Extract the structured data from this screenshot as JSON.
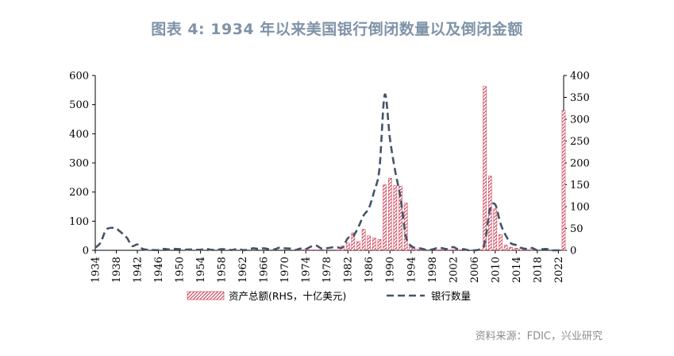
{
  "title": "图表 4:   1934 年以来美国银行倒闭数量以及倒闭金额",
  "source": "资料来源：FDIC，兴业研究",
  "colors": {
    "bars": "#c8334a",
    "line": "#44546a",
    "title": "#7f93a8"
  },
  "chart_data": {
    "type": "bar+line",
    "xlim": [
      1934,
      2023
    ],
    "x_ticks": [
      "1934",
      "1938",
      "1942",
      "1946",
      "1950",
      "1954",
      "1958",
      "1962",
      "1966",
      "1970",
      "1974",
      "1978",
      "1982",
      "1986",
      "1990",
      "1994",
      "1998",
      "2002",
      "2006",
      "2010",
      "2014",
      "2018",
      "2022"
    ],
    "y_left": {
      "range": [
        0,
        600
      ],
      "ticks": [
        "0",
        "100",
        "200",
        "300",
        "400",
        "500",
        "600"
      ]
    },
    "y_right": {
      "range": [
        0,
        400
      ],
      "ticks": [
        "0",
        "50",
        "100",
        "150",
        "200",
        "250",
        "300",
        "350",
        "400"
      ]
    },
    "legend": {
      "bars_label": "资产总额(RHS，十亿美元)",
      "line_label": "银行数量"
    },
    "bank_count": {
      "axis": "left",
      "x": [
        1934,
        1935,
        1936,
        1937,
        1938,
        1939,
        1940,
        1941,
        1942,
        1943,
        1944,
        1945,
        1946,
        1947,
        1948,
        1949,
        1950,
        1951,
        1952,
        1953,
        1954,
        1955,
        1956,
        1957,
        1958,
        1959,
        1960,
        1961,
        1962,
        1963,
        1964,
        1965,
        1966,
        1967,
        1968,
        1969,
        1970,
        1971,
        1972,
        1973,
        1974,
        1975,
        1976,
        1977,
        1978,
        1979,
        1980,
        1981,
        1982,
        1983,
        1984,
        1985,
        1986,
        1987,
        1988,
        1989,
        1990,
        1991,
        1992,
        1993,
        1994,
        1995,
        1996,
        1997,
        1998,
        1999,
        2000,
        2001,
        2002,
        2003,
        2004,
        2005,
        2006,
        2007,
        2008,
        2009,
        2010,
        2011,
        2012,
        2013,
        2014,
        2015,
        2016,
        2017,
        2018,
        2019,
        2020,
        2021,
        2022,
        2023
      ],
      "values": [
        9,
        26,
        69,
        77,
        74,
        60,
        43,
        15,
        20,
        5,
        2,
        1,
        1,
        5,
        3,
        5,
        4,
        2,
        3,
        2,
        2,
        5,
        2,
        1,
        4,
        3,
        1,
        5,
        1,
        2,
        7,
        5,
        7,
        4,
        3,
        9,
        7,
        6,
        1,
        6,
        4,
        13,
        16,
        6,
        7,
        10,
        10,
        10,
        42,
        48,
        80,
        120,
        145,
        203,
        280,
        534,
        382,
        271,
        181,
        50,
        15,
        8,
        6,
        1,
        3,
        8,
        7,
        4,
        11,
        3,
        4,
        0,
        0,
        3,
        25,
        140,
        157,
        92,
        51,
        24,
        18,
        8,
        5,
        8,
        0,
        4,
        4,
        0,
        0,
        5
      ]
    },
    "total_assets": {
      "axis": "right",
      "x": [
        1934,
        1935,
        1936,
        1937,
        1938,
        1939,
        1940,
        1941,
        1942,
        1943,
        1944,
        1945,
        1946,
        1947,
        1948,
        1949,
        1950,
        1951,
        1952,
        1953,
        1954,
        1955,
        1956,
        1957,
        1958,
        1959,
        1960,
        1961,
        1962,
        1963,
        1964,
        1965,
        1966,
        1967,
        1968,
        1969,
        1970,
        1971,
        1972,
        1973,
        1974,
        1975,
        1976,
        1977,
        1978,
        1979,
        1980,
        1981,
        1982,
        1983,
        1984,
        1985,
        1986,
        1987,
        1988,
        1989,
        1990,
        1991,
        1992,
        1993,
        1994,
        1995,
        1996,
        1997,
        1998,
        1999,
        2000,
        2001,
        2002,
        2003,
        2004,
        2005,
        2006,
        2007,
        2008,
        2009,
        2010,
        2011,
        2012,
        2013,
        2014,
        2015,
        2016,
        2017,
        2018,
        2019,
        2020,
        2021,
        2022,
        2023
      ],
      "values": [
        0,
        0,
        0,
        0,
        0,
        0,
        0,
        0,
        0,
        0,
        0,
        0,
        0,
        0,
        0,
        0,
        0,
        0,
        0,
        0,
        0,
        0,
        0,
        0,
        0,
        0,
        0,
        0,
        0,
        0,
        0,
        0,
        0,
        0,
        0,
        0,
        0,
        0,
        1,
        1,
        3,
        1,
        1,
        0,
        1,
        0,
        1,
        10,
        17,
        40,
        20,
        48,
        33,
        28,
        25,
        150,
        165,
        148,
        147,
        108,
        11,
        3,
        1,
        0,
        0,
        1,
        1,
        1,
        1,
        1,
        0,
        0,
        0,
        1,
        375,
        170,
        95,
        36,
        12,
        7,
        5,
        6,
        1,
        4,
        0,
        0,
        0,
        0,
        0,
        320
      ]
    }
  }
}
